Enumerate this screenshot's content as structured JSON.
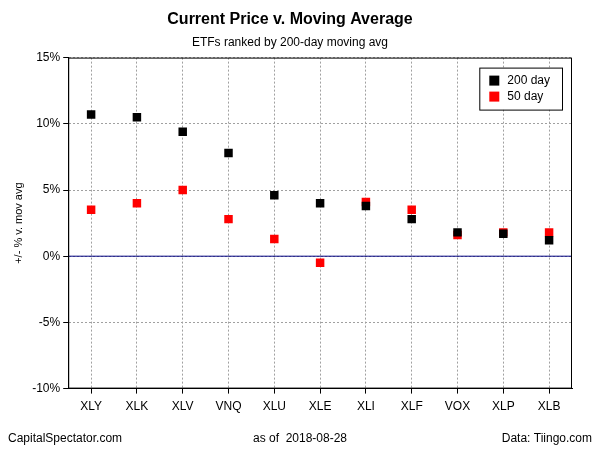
{
  "chart_data": {
    "type": "scatter",
    "title": "Current Price v. Moving Average",
    "subtitle": "ETFs ranked by 200-day moving avg",
    "y_label": "+/- % v. mov avg",
    "categories": [
      "XLY",
      "XLK",
      "XLV",
      "VNQ",
      "XLU",
      "XLE",
      "XLI",
      "XLF",
      "VOX",
      "XLP",
      "XLB"
    ],
    "series": [
      {
        "name": "200 day",
        "color": "#000000",
        "marker": "square",
        "values": [
          10.7,
          10.5,
          9.4,
          7.8,
          4.6,
          4.0,
          3.8,
          2.8,
          1.8,
          1.7,
          1.2
        ]
      },
      {
        "name": "50 day",
        "color": "#ff0000",
        "marker": "square",
        "values": [
          3.5,
          4.0,
          5.0,
          2.8,
          1.3,
          -0.5,
          4.1,
          3.5,
          1.6,
          1.8,
          1.8
        ]
      }
    ],
    "ylim": [
      -10,
      15
    ],
    "yticks": [
      {
        "value": -10,
        "label": "-10%"
      },
      {
        "value": -5,
        "label": "-5%"
      },
      {
        "value": 0,
        "label": "0%"
      },
      {
        "value": 5,
        "label": "5%"
      },
      {
        "value": 10,
        "label": "10%"
      },
      {
        "value": 15,
        "label": "15%"
      }
    ],
    "grid": true,
    "legend": "top-right",
    "reference_lines": [
      {
        "y": 0,
        "color": "#000080"
      }
    ],
    "footer": {
      "left": "CapitalSpectator.com",
      "center": "as of  2018-08-28",
      "right": "Data: Tiingo.com"
    }
  }
}
